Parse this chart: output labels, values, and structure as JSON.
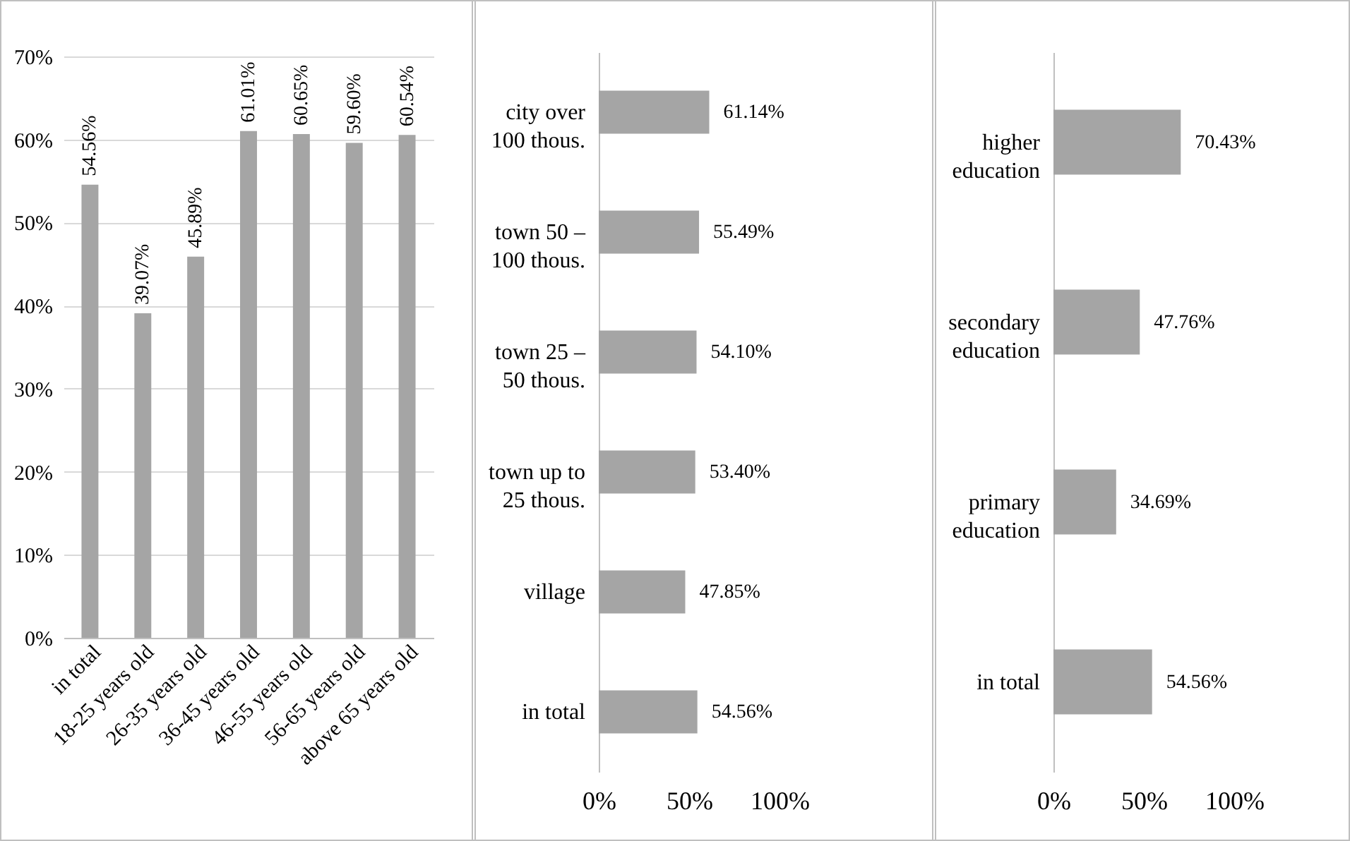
{
  "chart_data": [
    {
      "type": "bar",
      "categories": [
        "in total",
        "18-25 years old",
        "26-35 years old",
        "36-45 years old",
        "46-55 years old",
        "56-65 years old",
        "above 65 years old"
      ],
      "values": [
        54.56,
        39.07,
        45.89,
        61.01,
        60.65,
        59.6,
        60.54
      ],
      "value_labels": [
        "54.56%",
        "39.07%",
        "45.89%",
        "61.01%",
        "60.65%",
        "59.60%",
        "60.54%"
      ],
      "color": "#a5a5a5",
      "ylim": [
        0,
        70
      ],
      "yticks": [
        {
          "value": 0,
          "label": "0%"
        },
        {
          "value": 10,
          "label": "10%"
        },
        {
          "value": 20,
          "label": "20%"
        },
        {
          "value": 30,
          "label": "30%"
        },
        {
          "value": 40,
          "label": "40%"
        },
        {
          "value": 50,
          "label": "50%"
        },
        {
          "value": 60,
          "label": "60%"
        },
        {
          "value": 70,
          "label": "70%"
        }
      ],
      "grid": true
    },
    {
      "type": "bar",
      "orientation": "horizontal",
      "categories": [
        "city over 100 thous.",
        "town 50 – 100 thous.",
        "town 25 – 50 thous.",
        "town up to 25 thous.",
        "village",
        "in total"
      ],
      "values": [
        61.14,
        55.49,
        54.1,
        53.4,
        47.85,
        54.56
      ],
      "value_labels": [
        "61.14%",
        "55.49%",
        "54.10%",
        "53.40%",
        "47.85%",
        "54.56%"
      ],
      "color": "#a5a5a5",
      "xlim": [
        0,
        100
      ],
      "xticks": [
        {
          "value": 0,
          "label": "0%"
        },
        {
          "value": 50,
          "label": "50%"
        },
        {
          "value": 100,
          "label": "100%"
        }
      ]
    },
    {
      "type": "bar",
      "orientation": "horizontal",
      "categories": [
        "higher education",
        "secondary education",
        "primary education",
        "in total"
      ],
      "values": [
        70.43,
        47.76,
        34.69,
        54.56
      ],
      "value_labels": [
        "70.43%",
        "47.76%",
        "34.69%",
        "54.56%"
      ],
      "color": "#a5a5a5",
      "xlim": [
        0,
        100
      ],
      "xticks": [
        {
          "value": 0,
          "label": "0%"
        },
        {
          "value": 50,
          "label": "50%"
        },
        {
          "value": 100,
          "label": "100%"
        }
      ]
    }
  ]
}
